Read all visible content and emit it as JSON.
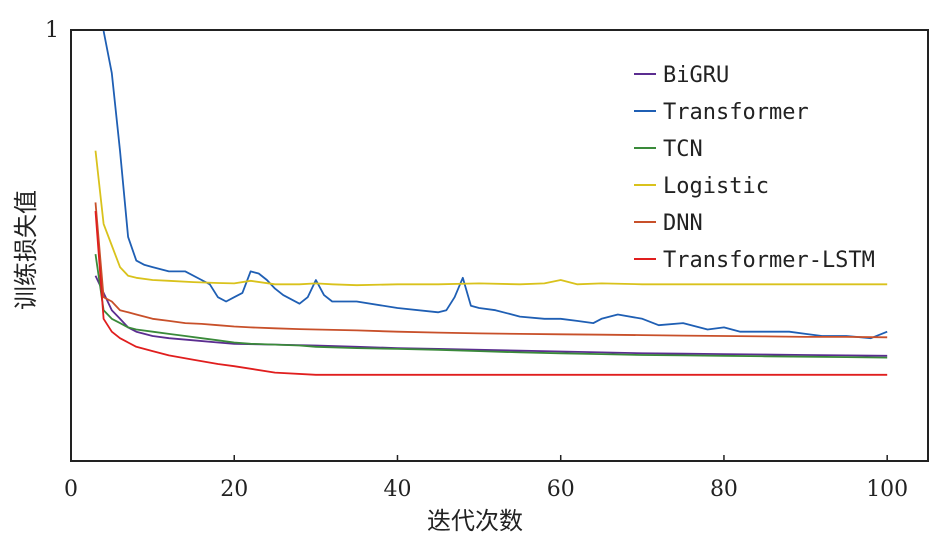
{
  "chart_data": {
    "type": "line",
    "xlabel": "迭代次数",
    "ylabel": "训练损失值",
    "xlim": [
      0,
      105
    ],
    "ylim": [
      0,
      1
    ],
    "xticks": [
      0,
      20,
      40,
      60,
      80,
      100
    ],
    "xtick_labels": [
      "0",
      "20",
      "40",
      "60",
      "80",
      "100"
    ],
    "yticks": [
      1
    ],
    "ytick_labels": [
      "1"
    ],
    "legend_position": "top-right",
    "grid": false,
    "series": [
      {
        "name": "BiGRU",
        "color": "#5b2d90",
        "x": [
          3,
          4,
          5,
          6,
          7,
          8,
          10,
          12,
          15,
          18,
          20,
          25,
          30,
          35,
          40,
          45,
          50,
          55,
          60,
          65,
          70,
          75,
          80,
          85,
          90,
          95,
          100
        ],
        "values": [
          0.43,
          0.39,
          0.35,
          0.33,
          0.31,
          0.3,
          0.29,
          0.285,
          0.28,
          0.275,
          0.272,
          0.27,
          0.268,
          0.265,
          0.262,
          0.26,
          0.258,
          0.256,
          0.254,
          0.252,
          0.25,
          0.249,
          0.248,
          0.247,
          0.246,
          0.245,
          0.244
        ]
      },
      {
        "name": "Transformer",
        "color": "#1f5fb4",
        "x": [
          4,
          5,
          6,
          7,
          8,
          9,
          10,
          12,
          14,
          16,
          17,
          18,
          19,
          20,
          21,
          22,
          23,
          24,
          25,
          26,
          28,
          29,
          30,
          31,
          32,
          35,
          40,
          45,
          46,
          47,
          48,
          49,
          50,
          52,
          55,
          58,
          60,
          62,
          64,
          65,
          67,
          70,
          72,
          75,
          78,
          80,
          82,
          85,
          88,
          90,
          92,
          95,
          98,
          100
        ],
        "values": [
          1.1,
          0.9,
          0.72,
          0.52,
          0.465,
          0.455,
          0.45,
          0.44,
          0.44,
          0.42,
          0.41,
          0.38,
          0.37,
          0.38,
          0.39,
          0.44,
          0.435,
          0.42,
          0.4,
          0.385,
          0.365,
          0.38,
          0.42,
          0.385,
          0.37,
          0.37,
          0.355,
          0.345,
          0.35,
          0.38,
          0.425,
          0.36,
          0.355,
          0.35,
          0.335,
          0.33,
          0.33,
          0.325,
          0.32,
          0.33,
          0.34,
          0.33,
          0.315,
          0.32,
          0.305,
          0.31,
          0.3,
          0.3,
          0.3,
          0.295,
          0.29,
          0.29,
          0.285,
          0.3
        ]
      },
      {
        "name": "TCN",
        "color": "#3a8a3a",
        "x": [
          3,
          4,
          5,
          6,
          7,
          8,
          10,
          12,
          14,
          16,
          18,
          20,
          22,
          25,
          28,
          30,
          35,
          40,
          45,
          50,
          55,
          60,
          65,
          70,
          75,
          80,
          85,
          90,
          95,
          100
        ],
        "values": [
          0.48,
          0.35,
          0.33,
          0.32,
          0.31,
          0.305,
          0.3,
          0.295,
          0.29,
          0.285,
          0.28,
          0.275,
          0.272,
          0.27,
          0.268,
          0.265,
          0.262,
          0.26,
          0.258,
          0.255,
          0.252,
          0.25,
          0.248,
          0.246,
          0.245,
          0.244,
          0.243,
          0.242,
          0.241,
          0.24
        ]
      },
      {
        "name": "Logistic",
        "color": "#d9c21c",
        "x": [
          3,
          4,
          5,
          6,
          7,
          8,
          10,
          12,
          15,
          18,
          20,
          22,
          25,
          28,
          30,
          32,
          35,
          40,
          45,
          50,
          55,
          58,
          60,
          62,
          65,
          70,
          75,
          80,
          85,
          90,
          95,
          100
        ],
        "values": [
          0.72,
          0.55,
          0.5,
          0.45,
          0.43,
          0.425,
          0.42,
          0.418,
          0.415,
          0.413,
          0.412,
          0.418,
          0.41,
          0.41,
          0.412,
          0.41,
          0.408,
          0.41,
          0.41,
          0.412,
          0.41,
          0.412,
          0.42,
          0.41,
          0.412,
          0.41,
          0.41,
          0.41,
          0.41,
          0.41,
          0.41,
          0.41
        ]
      },
      {
        "name": "DNN",
        "color": "#c8502a",
        "x": [
          3,
          4,
          5,
          6,
          7,
          8,
          9,
          10,
          12,
          14,
          16,
          18,
          20,
          22,
          25,
          28,
          30,
          35,
          40,
          45,
          50,
          55,
          60,
          65,
          70,
          75,
          80,
          85,
          90,
          95,
          100
        ],
        "values": [
          0.6,
          0.38,
          0.37,
          0.35,
          0.345,
          0.34,
          0.335,
          0.33,
          0.325,
          0.32,
          0.318,
          0.315,
          0.312,
          0.31,
          0.308,
          0.306,
          0.305,
          0.303,
          0.3,
          0.298,
          0.296,
          0.295,
          0.294,
          0.293,
          0.292,
          0.291,
          0.29,
          0.289,
          0.288,
          0.288,
          0.287
        ]
      },
      {
        "name": "Transformer-LSTM",
        "color": "#e01e1e",
        "x": [
          3,
          4,
          5,
          6,
          7,
          8,
          10,
          12,
          15,
          18,
          20,
          25,
          30,
          35,
          40,
          45,
          50,
          55,
          60,
          65,
          70,
          75,
          80,
          85,
          90,
          95,
          100
        ],
        "values": [
          0.58,
          0.33,
          0.3,
          0.285,
          0.275,
          0.265,
          0.255,
          0.245,
          0.235,
          0.225,
          0.22,
          0.205,
          0.2,
          0.2,
          0.2,
          0.2,
          0.2,
          0.2,
          0.2,
          0.2,
          0.2,
          0.2,
          0.2,
          0.2,
          0.2,
          0.2,
          0.2
        ]
      }
    ]
  }
}
